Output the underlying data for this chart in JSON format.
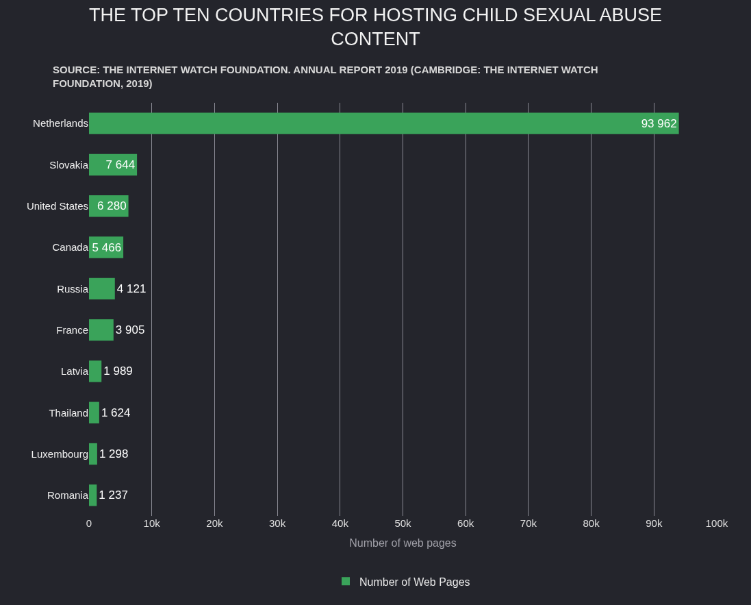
{
  "chart_data": {
    "type": "bar",
    "orientation": "horizontal",
    "title": "THE TOP TEN COUNTRIES FOR HOSTING CHILD SEXUAL ABUSE CONTENT",
    "subtitle": "SOURCE: THE INTERNET WATCH FOUNDATION. ANNUAL REPORT 2019 (CAMBRIDGE: THE INTERNET WATCH FOUNDATION, 2019)",
    "xlabel": "Number of web pages",
    "categories": [
      "Netherlands",
      "Slovakia",
      "United States",
      "Canada",
      "Russia",
      "France",
      "Latvia",
      "Thailand",
      "Luxembourg",
      "Romania"
    ],
    "series": [
      {
        "name": "Number of Web Pages",
        "color": "#3aa35a",
        "values": [
          93962,
          7644,
          6280,
          5466,
          4121,
          3905,
          1989,
          1624,
          1298,
          1237
        ],
        "value_labels": [
          "93 962",
          "7 644",
          "6 280",
          "5 466",
          "4 121",
          "3 905",
          "1 989",
          "1 624",
          "1 298",
          "1 237"
        ]
      }
    ],
    "xlim": [
      0,
      100000
    ],
    "xticks": [
      0,
      {
        "value": 10000,
        "label": "10k"
      },
      {
        "value": 20000,
        "label": "20k"
      },
      {
        "value": 30000,
        "label": "30k"
      },
      {
        "value": 40000,
        "label": "40k"
      },
      {
        "value": 50000,
        "label": "50k"
      },
      {
        "value": 60000,
        "label": "60k"
      },
      {
        "value": 70000,
        "label": "70k"
      },
      {
        "value": 80000,
        "label": "80k"
      },
      {
        "value": 90000,
        "label": "90k"
      },
      {
        "value": 100000,
        "label": "100k"
      }
    ],
    "grid": "x",
    "legend": "bottom"
  }
}
